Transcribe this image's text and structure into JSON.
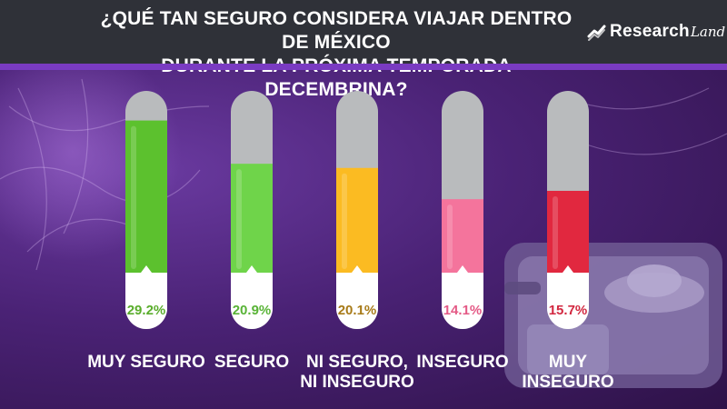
{
  "header": {
    "title_line1": "¿QUÉ TAN SEGURO CONSIDERA VIAJAR DENTRO DE MÉXICO",
    "title_line2": "DURANTE LA PRÓXIMA TEMPORADA DECEMBRINA?",
    "logo_main": "Research",
    "logo_script": "Land"
  },
  "colors": {
    "header_bg": "#2f3138",
    "accent": "#7a3bc2",
    "tube_empty": "#b9bbbd",
    "tube_bottom": "#ffffff"
  },
  "chart_data": {
    "type": "bar",
    "title": "¿QUÉ TAN SEGURO CONSIDERA VIAJAR DENTRO DE MÉXICO DURANTE LA PRÓXIMA TEMPORADA DECEMBRINA?",
    "unit": "%",
    "categories": [
      "MUY SEGURO",
      "SEGURO",
      "NI SEGURO, NI INSEGURO",
      "INSEGURO",
      "MUY INSEGURO"
    ],
    "category_lines": [
      [
        "MUY SEGURO"
      ],
      [
        "SEGURO"
      ],
      [
        "NI SEGURO,",
        "NI INSEGURO"
      ],
      [
        "INSEGURO"
      ],
      [
        "MUY",
        "INSEGURO"
      ]
    ],
    "values": [
      29.2,
      20.9,
      20.1,
      14.1,
      15.7
    ],
    "value_labels": [
      "29.2%",
      "20.9%",
      "20.1%",
      "14.1%",
      "15.7%"
    ],
    "colors": [
      "#5cc12e",
      "#6fd44a",
      "#fbbb22",
      "#f4749c",
      "#e1283f"
    ],
    "label_colors": [
      "#5aad2c",
      "#58b336",
      "#a77a18",
      "#e45a86",
      "#d22840"
    ],
    "ylim": [
      0,
      30
    ]
  }
}
